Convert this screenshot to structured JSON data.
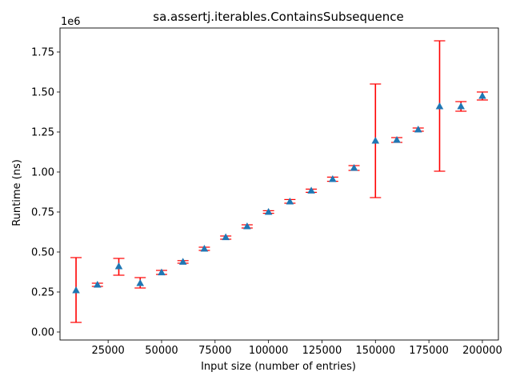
{
  "chart_data": {
    "type": "scatter",
    "title": "sa.assertj.iterables.ContainsSubsequence",
    "xlabel": "Input size (number of entries)",
    "ylabel": "Runtime (ns)",
    "y_offset_label": "1e6",
    "xlim": [
      2500,
      207500
    ],
    "ylim": [
      -0.05,
      1.9
    ],
    "x_ticks": [
      25000,
      50000,
      75000,
      100000,
      125000,
      150000,
      175000,
      200000
    ],
    "x_tick_labels": [
      "25000",
      "50000",
      "75000",
      "100000",
      "125000",
      "150000",
      "175000",
      "200000"
    ],
    "y_ticks": [
      0.0,
      0.25,
      0.5,
      0.75,
      1.0,
      1.25,
      1.5,
      1.75
    ],
    "y_tick_labels": [
      "0.00",
      "0.25",
      "0.50",
      "0.75",
      "1.00",
      "1.25",
      "1.50",
      "1.75"
    ],
    "grid": false,
    "marker_color": "#1f77b4",
    "errorbar_color": "#ff0000",
    "series": [
      {
        "x": [
          10000,
          20000,
          30000,
          40000,
          50000,
          60000,
          70000,
          80000,
          90000,
          100000,
          110000,
          120000,
          130000,
          140000,
          150000,
          160000,
          170000,
          180000,
          190000,
          200000
        ],
        "y": [
          0.26,
          0.295,
          0.41,
          0.305,
          0.372,
          0.438,
          0.52,
          0.592,
          0.66,
          0.75,
          0.815,
          0.883,
          0.955,
          1.025,
          1.195,
          1.2,
          1.265,
          1.41,
          1.41,
          1.475
        ],
        "y_low": [
          0.06,
          0.285,
          0.355,
          0.275,
          0.36,
          0.43,
          0.51,
          0.58,
          0.65,
          0.742,
          0.805,
          0.873,
          0.942,
          1.01,
          0.84,
          1.185,
          1.255,
          1.005,
          1.38,
          1.45
        ],
        "y_high": [
          0.465,
          0.305,
          0.46,
          0.34,
          0.385,
          0.446,
          0.53,
          0.6,
          0.67,
          0.758,
          0.828,
          0.893,
          0.968,
          1.04,
          1.55,
          1.215,
          1.275,
          1.82,
          1.44,
          1.5
        ]
      }
    ]
  }
}
